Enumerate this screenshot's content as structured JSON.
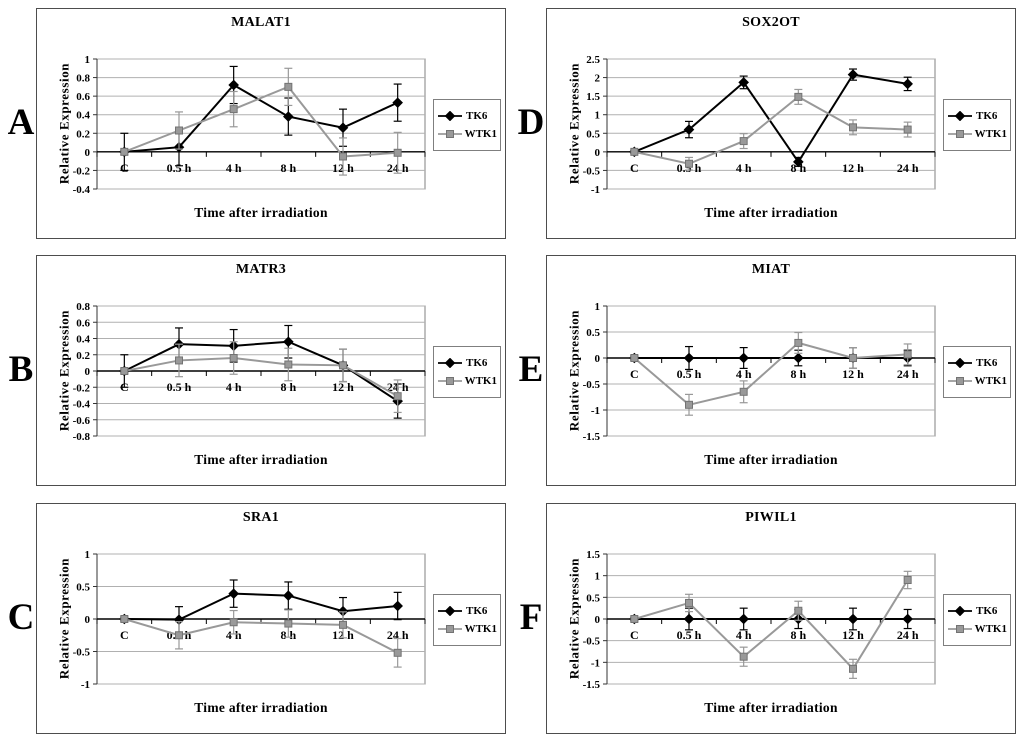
{
  "figure": {
    "background": "#ffffff",
    "grid_color": "#b0b0b0",
    "plot_border_color": "#808080",
    "axis_color": "#000000",
    "legend_labels": [
      "TK6",
      "WTK1"
    ]
  },
  "chart_data": [
    {
      "panel": "A",
      "type": "line",
      "title": "MALAT1",
      "xlabel": "Time after irradiation",
      "ylabel": "Relative Expression",
      "categories": [
        "C",
        "0.5 h",
        "4 h",
        "8 h",
        "12 h",
        "24 h"
      ],
      "ylim": [
        -0.4,
        1
      ],
      "ytick_step": 0.2,
      "grid": true,
      "legend_position": "right",
      "series": [
        {
          "name": "TK6",
          "marker": "diamond",
          "color": "#000000",
          "values": [
            0,
            0.05,
            0.72,
            0.38,
            0.26,
            0.53
          ],
          "errors": [
            0.2,
            0.2,
            0.2,
            0.2,
            0.2,
            0.2
          ]
        },
        {
          "name": "WTK1",
          "marker": "square",
          "color": "#999999",
          "values": [
            0,
            0.23,
            0.46,
            0.7,
            -0.05,
            -0.01
          ],
          "errors": [
            0.03,
            0.2,
            0.19,
            0.2,
            0.2,
            0.22
          ]
        }
      ]
    },
    {
      "panel": "B",
      "type": "line",
      "title": "MATR3",
      "xlabel": "Time after irradiation",
      "ylabel": "Relative Expression",
      "categories": [
        "C",
        "0.5 h",
        "4 h",
        "8 h",
        "12 h",
        "24 h"
      ],
      "ylim": [
        -0.8,
        0.8
      ],
      "ytick_step": 0.2,
      "grid": true,
      "legend_position": "right",
      "series": [
        {
          "name": "TK6",
          "marker": "diamond",
          "color": "#000000",
          "values": [
            0,
            0.33,
            0.31,
            0.36,
            0.07,
            -0.37
          ],
          "errors": [
            0.2,
            0.2,
            0.2,
            0.2,
            0.2,
            0.21
          ]
        },
        {
          "name": "WTK1",
          "marker": "square",
          "color": "#999999",
          "values": [
            0,
            0.13,
            0.16,
            0.08,
            0.07,
            -0.31
          ],
          "errors": [
            0.03,
            0.2,
            0.2,
            0.2,
            0.2,
            0.2
          ]
        }
      ]
    },
    {
      "panel": "C",
      "type": "line",
      "title": "SRA1",
      "xlabel": "Time after irradiation",
      "ylabel": "Relative Expression",
      "categories": [
        "C",
        "0.5 h",
        "4 h",
        "8 h",
        "12 h",
        "24 h"
      ],
      "ylim": [
        -1,
        1
      ],
      "ytick_step": 0.5,
      "grid": true,
      "legend_position": "right",
      "series": [
        {
          "name": "TK6",
          "marker": "diamond",
          "color": "#000000",
          "values": [
            0,
            -0.01,
            0.39,
            0.36,
            0.12,
            0.2
          ],
          "errors": [
            0.03,
            0.2,
            0.21,
            0.21,
            0.21,
            0.21
          ]
        },
        {
          "name": "WTK1",
          "marker": "square",
          "color": "#999999",
          "values": [
            0,
            -0.25,
            -0.05,
            -0.07,
            -0.09,
            -0.52
          ],
          "errors": [
            0.03,
            0.21,
            0.18,
            0.21,
            0.2,
            0.22
          ]
        }
      ]
    },
    {
      "panel": "D",
      "type": "line",
      "title": "SOX2OT",
      "xlabel": "Time after irradiation",
      "ylabel": "Relative Expression",
      "categories": [
        "C",
        "0.5 h",
        "4 h",
        "8 h",
        "12 h",
        "24 h"
      ],
      "ylim": [
        -1,
        2.5
      ],
      "ytick_step": 0.5,
      "grid": true,
      "legend_position": "right",
      "series": [
        {
          "name": "TK6",
          "marker": "diamond",
          "color": "#000000",
          "values": [
            0,
            0.6,
            1.87,
            -0.27,
            2.08,
            1.83
          ],
          "errors": [
            0.04,
            0.22,
            0.17,
            0.12,
            0.15,
            0.18
          ]
        },
        {
          "name": "WTK1",
          "marker": "square",
          "color": "#999999",
          "values": [
            0,
            -0.32,
            0.29,
            1.48,
            0.66,
            0.6
          ],
          "errors": [
            0.04,
            0.17,
            0.2,
            0.2,
            0.2,
            0.2
          ]
        }
      ]
    },
    {
      "panel": "E",
      "type": "line",
      "title": "MIAT",
      "xlabel": "Time after irradiation",
      "ylabel": "Relative Expression",
      "categories": [
        "C",
        "0.5 h",
        "4 h",
        "8 h",
        "12 h",
        "24 h"
      ],
      "ylim": [
        -1.5,
        1
      ],
      "ytick_step": 0.5,
      "grid": true,
      "legend_position": "right",
      "series": [
        {
          "name": "TK6",
          "marker": "diamond",
          "color": "#000000",
          "values": [
            0,
            0,
            0,
            0,
            0,
            0
          ],
          "errors": [
            0.04,
            0.22,
            0.2,
            0.15,
            0.2,
            0.15
          ]
        },
        {
          "name": "WTK1",
          "marker": "square",
          "color": "#999999",
          "values": [
            0,
            -0.9,
            -0.65,
            0.29,
            0.0,
            0.07
          ],
          "errors": [
            0.04,
            0.2,
            0.21,
            0.2,
            0.2,
            0.2
          ]
        }
      ]
    },
    {
      "panel": "F",
      "type": "line",
      "title": "PIWIL1",
      "xlabel": "Time after irradiation",
      "ylabel": "Relative Expression",
      "categories": [
        "C",
        "0.5 h",
        "4 h",
        "8 h",
        "12 h",
        "24 h"
      ],
      "ylim": [
        -1.5,
        1.5
      ],
      "ytick_step": 0.5,
      "grid": true,
      "legend_position": "right",
      "series": [
        {
          "name": "TK6",
          "marker": "diamond",
          "color": "#000000",
          "values": [
            0,
            0,
            0,
            0,
            0,
            0
          ],
          "errors": [
            0.04,
            0.25,
            0.25,
            0.22,
            0.25,
            0.22
          ]
        },
        {
          "name": "WTK1",
          "marker": "square",
          "color": "#999999",
          "values": [
            0,
            0.37,
            -0.87,
            0.19,
            -1.15,
            0.9
          ],
          "errors": [
            0.04,
            0.2,
            0.22,
            0.22,
            0.22,
            0.2
          ]
        }
      ]
    }
  ]
}
